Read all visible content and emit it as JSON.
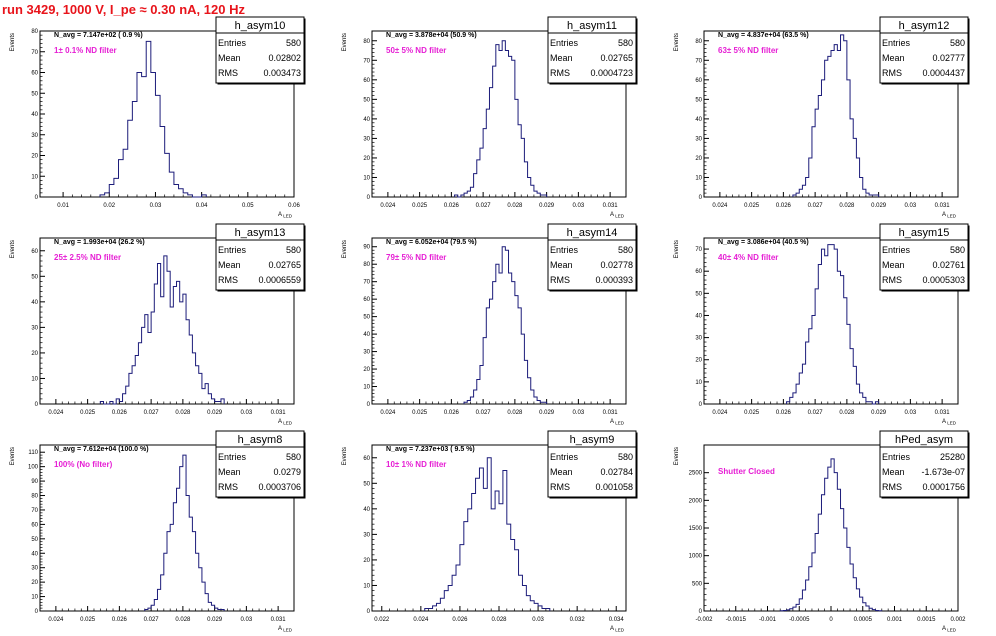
{
  "page_title": "run 3429,  1000 V, I_pe ≈ 0.30 nA, 120 Hz",
  "stats_labels": {
    "entries": "Entries",
    "mean": "Mean",
    "rms": "RMS"
  },
  "colors": {
    "title": "#e8141b",
    "annotation": "#e61ed4",
    "histogram": "#1c1c7a",
    "axis": "#000000"
  },
  "chart_data": [
    {
      "type": "histogram",
      "title": "h_asym10",
      "stats": {
        "entries": "580",
        "mean": "0.02802",
        "rms": "0.003473"
      },
      "navg_label": "N_avg = 7.147e+02 ( 0.9 %)",
      "filter_label": "1± 0.1% ND filter",
      "xlabel": "A_LED",
      "ylabel": "Events",
      "xlim": [
        0.005,
        0.06
      ],
      "ylim": [
        0,
        80
      ],
      "xticks": [
        "0.01",
        "0.02",
        "0.03",
        "0.04",
        "0.05",
        "0.06"
      ],
      "yticks": [
        "0",
        "10",
        "20",
        "30",
        "40",
        "50",
        "60",
        "70",
        "80"
      ],
      "bin_edges": [
        0.018,
        0.019,
        0.02,
        0.021,
        0.022,
        0.023,
        0.024,
        0.025,
        0.026,
        0.027,
        0.028,
        0.029,
        0.03,
        0.031,
        0.032,
        0.033,
        0.034,
        0.035,
        0.036,
        0.037,
        0.038,
        0.039,
        0.04,
        0.041
      ],
      "counts": [
        1,
        2,
        6,
        9,
        18,
        23,
        37,
        46,
        60,
        58,
        75,
        60,
        49,
        34,
        21,
        12,
        6,
        4,
        2,
        1,
        0,
        0,
        1
      ]
    },
    {
      "type": "histogram",
      "title": "h_asym11",
      "stats": {
        "entries": "580",
        "mean": "0.02765",
        "rms": "0.0004723"
      },
      "navg_label": "N_avg = 3.878e+04 (50.9 %)",
      "filter_label": "50± 5% ND filter",
      "xlabel": "A_LED",
      "ylabel": "Events",
      "xlim": [
        0.0235,
        0.0315
      ],
      "ylim": [
        0,
        85
      ],
      "xticks": [
        "0.024",
        "0.025",
        "0.026",
        "0.027",
        "0.028",
        "0.029",
        "0.03",
        "0.031"
      ],
      "yticks": [
        "0",
        "10",
        "20",
        "30",
        "40",
        "50",
        "60",
        "70",
        "80"
      ],
      "bin_edges": [
        0.0261,
        0.0262,
        0.0263,
        0.0264,
        0.0265,
        0.0266,
        0.0267,
        0.0268,
        0.0269,
        0.027,
        0.0271,
        0.0272,
        0.0273,
        0.0274,
        0.0275,
        0.0276,
        0.0277,
        0.0278,
        0.0279,
        0.028,
        0.0281,
        0.0282,
        0.0283,
        0.0284,
        0.0285,
        0.0286,
        0.0287,
        0.0288,
        0.0289,
        0.029
      ],
      "counts": [
        1,
        0,
        1,
        2,
        3,
        5,
        12,
        19,
        25,
        35,
        45,
        56,
        67,
        78,
        75,
        80,
        75,
        72,
        70,
        50,
        37,
        30,
        18,
        10,
        6,
        3,
        2,
        1,
        1
      ]
    },
    {
      "type": "histogram",
      "title": "h_asym12",
      "stats": {
        "entries": "580",
        "mean": "0.02777",
        "rms": "0.0004437"
      },
      "navg_label": "N_avg = 4.837e+04 (63.5 %)",
      "filter_label": "63± 5% ND filter",
      "xlabel": "A_LED",
      "ylabel": "Events",
      "xlim": [
        0.0235,
        0.0315
      ],
      "ylim": [
        0,
        85
      ],
      "xticks": [
        "0.024",
        "0.025",
        "0.026",
        "0.027",
        "0.028",
        "0.029",
        "0.03",
        "0.031"
      ],
      "yticks": [
        "0",
        "10",
        "20",
        "30",
        "40",
        "50",
        "60",
        "70",
        "80"
      ],
      "bin_edges": [
        0.0263,
        0.0264,
        0.0265,
        0.0266,
        0.0267,
        0.0268,
        0.0269,
        0.027,
        0.0271,
        0.0272,
        0.0273,
        0.0274,
        0.0275,
        0.0276,
        0.0277,
        0.0278,
        0.0279,
        0.028,
        0.0281,
        0.0282,
        0.0283,
        0.0284,
        0.0285,
        0.0286,
        0.0287,
        0.0288,
        0.0289,
        0.029
      ],
      "counts": [
        1,
        2,
        4,
        6,
        10,
        20,
        36,
        45,
        52,
        60,
        70,
        72,
        75,
        78,
        75,
        83,
        80,
        60,
        40,
        30,
        20,
        10,
        4,
        2,
        1,
        1,
        1
      ]
    },
    {
      "type": "histogram",
      "title": "h_asym13",
      "stats": {
        "entries": "580",
        "mean": "0.02765",
        "rms": "0.0006559"
      },
      "navg_label": "N_avg = 1.993e+04 (26.2 %)",
      "filter_label": "25± 2.5% ND filter",
      "xlabel": "A_LED",
      "ylabel": "Events",
      "xlim": [
        0.0235,
        0.0315
      ],
      "ylim": [
        0,
        65
      ],
      "xticks": [
        "0.024",
        "0.025",
        "0.026",
        "0.027",
        "0.028",
        "0.029",
        "0.03",
        "0.031"
      ],
      "yticks": [
        "0",
        "10",
        "20",
        "30",
        "40",
        "50",
        "60"
      ],
      "bin_edges": [
        0.0254,
        0.0255,
        0.0256,
        0.0257,
        0.0258,
        0.0259,
        0.026,
        0.0261,
        0.0262,
        0.0263,
        0.0264,
        0.0265,
        0.0266,
        0.0267,
        0.0268,
        0.0269,
        0.027,
        0.0271,
        0.0272,
        0.0273,
        0.0274,
        0.0275,
        0.0276,
        0.0277,
        0.0278,
        0.0279,
        0.028,
        0.0281,
        0.0282,
        0.0283,
        0.0284,
        0.0285,
        0.0286,
        0.0287,
        0.0288,
        0.0289,
        0.029,
        0.0291,
        0.0292,
        0.0293
      ],
      "counts": [
        1,
        0,
        0,
        1,
        0,
        2,
        1,
        4,
        7,
        12,
        15,
        19,
        24,
        30,
        35,
        28,
        36,
        47,
        55,
        42,
        58,
        52,
        38,
        46,
        48,
        40,
        43,
        33,
        27,
        20,
        15,
        12,
        6,
        8,
        4,
        2,
        1,
        1,
        2
      ]
    },
    {
      "type": "histogram",
      "title": "h_asym14",
      "stats": {
        "entries": "580",
        "mean": "0.02778",
        "rms": "0.000393"
      },
      "navg_label": "N_avg = 6.052e+04 (79.5 %)",
      "filter_label": "79± 5% ND filter",
      "xlabel": "A_LED",
      "ylabel": "Events",
      "xlim": [
        0.0235,
        0.0315
      ],
      "ylim": [
        0,
        95
      ],
      "xticks": [
        "0.024",
        "0.025",
        "0.026",
        "0.027",
        "0.028",
        "0.029",
        "0.03",
        "0.031"
      ],
      "yticks": [
        "0",
        "10",
        "20",
        "30",
        "40",
        "50",
        "60",
        "70",
        "80",
        "90"
      ],
      "bin_edges": [
        0.0264,
        0.0265,
        0.0266,
        0.0267,
        0.0268,
        0.0269,
        0.027,
        0.0271,
        0.0272,
        0.0273,
        0.0274,
        0.0275,
        0.0276,
        0.0277,
        0.0278,
        0.0279,
        0.028,
        0.0281,
        0.0282,
        0.0283,
        0.0284,
        0.0285,
        0.0286,
        0.0287,
        0.0288,
        0.0289,
        0.029
      ],
      "counts": [
        1,
        2,
        4,
        8,
        14,
        22,
        38,
        55,
        60,
        70,
        80,
        75,
        90,
        88,
        75,
        70,
        62,
        55,
        40,
        25,
        15,
        8,
        4,
        2,
        1,
        1
      ]
    },
    {
      "type": "histogram",
      "title": "h_asym15",
      "stats": {
        "entries": "580",
        "mean": "0.02761",
        "rms": "0.0005303"
      },
      "navg_label": "N_avg = 3.086e+04 (40.5 %)",
      "filter_label": "40± 4% ND filter",
      "xlabel": "A_LED",
      "ylabel": "Events",
      "xlim": [
        0.0235,
        0.0315
      ],
      "ylim": [
        0,
        75
      ],
      "xticks": [
        "0.024",
        "0.025",
        "0.026",
        "0.027",
        "0.028",
        "0.029",
        "0.03",
        "0.031"
      ],
      "yticks": [
        "0",
        "10",
        "20",
        "30",
        "40",
        "50",
        "60",
        "70"
      ],
      "bin_edges": [
        0.0261,
        0.0262,
        0.0263,
        0.0264,
        0.0265,
        0.0266,
        0.0267,
        0.0268,
        0.0269,
        0.027,
        0.0271,
        0.0272,
        0.0273,
        0.0274,
        0.0275,
        0.0276,
        0.0277,
        0.0278,
        0.0279,
        0.028,
        0.0281,
        0.0282,
        0.0283,
        0.0284,
        0.0285,
        0.0286,
        0.0287,
        0.0288,
        0.0289,
        0.029
      ],
      "counts": [
        1,
        3,
        5,
        9,
        14,
        18,
        28,
        34,
        40,
        52,
        63,
        70,
        67,
        72,
        72,
        70,
        60,
        58,
        48,
        36,
        25,
        17,
        9,
        5,
        3,
        1,
        1,
        0,
        1
      ]
    },
    {
      "type": "histogram",
      "title": "h_asym8",
      "stats": {
        "entries": "580",
        "mean": "0.0279",
        "rms": "0.0003706"
      },
      "navg_label": "N_avg = 7.612e+04 (100.0 %)",
      "filter_label": "100% (No filter)",
      "xlabel": "A_LED",
      "ylabel": "Events",
      "xlim": [
        0.0235,
        0.0315
      ],
      "ylim": [
        0,
        115
      ],
      "xticks": [
        "0.024",
        "0.025",
        "0.026",
        "0.027",
        "0.028",
        "0.029",
        "0.03",
        "0.031"
      ],
      "yticks": [
        "0",
        "10",
        "20",
        "30",
        "40",
        "50",
        "60",
        "70",
        "80",
        "90",
        "100",
        "110"
      ],
      "bin_edges": [
        0.0268,
        0.0269,
        0.027,
        0.0271,
        0.0272,
        0.0273,
        0.0274,
        0.0275,
        0.0276,
        0.0277,
        0.0278,
        0.0279,
        0.028,
        0.0281,
        0.0282,
        0.0283,
        0.0284,
        0.0285,
        0.0286,
        0.0287,
        0.0288,
        0.0289,
        0.029,
        0.0291,
        0.0292,
        0.0293
      ],
      "counts": [
        1,
        2,
        4,
        8,
        15,
        25,
        40,
        55,
        60,
        75,
        85,
        100,
        108,
        80,
        65,
        55,
        40,
        30,
        20,
        12,
        6,
        4,
        2,
        1,
        1
      ]
    },
    {
      "type": "histogram",
      "title": "h_asym9",
      "stats": {
        "entries": "580",
        "mean": "0.02784",
        "rms": "0.001058"
      },
      "navg_label": "N_avg = 7.237e+03 ( 9.5 %)",
      "filter_label": "10± 1% ND filter",
      "xlabel": "A_LED",
      "ylabel": "Events",
      "xlim": [
        0.0215,
        0.0345
      ],
      "ylim": [
        0,
        65
      ],
      "xticks": [
        "0.022",
        "0.024",
        "0.026",
        "0.028",
        "0.03",
        "0.032",
        "0.034"
      ],
      "yticks": [
        "0",
        "10",
        "20",
        "30",
        "40",
        "50",
        "60"
      ],
      "bin_edges": [
        0.0242,
        0.0244,
        0.0246,
        0.0248,
        0.025,
        0.0252,
        0.0254,
        0.0256,
        0.0258,
        0.026,
        0.0262,
        0.0264,
        0.0266,
        0.0268,
        0.027,
        0.0272,
        0.0274,
        0.0276,
        0.0278,
        0.028,
        0.0282,
        0.0284,
        0.0286,
        0.0288,
        0.029,
        0.0292,
        0.0294,
        0.0296,
        0.0298,
        0.03,
        0.0302,
        0.0304,
        0.0306
      ],
      "counts": [
        1,
        1,
        2,
        3,
        5,
        8,
        10,
        14,
        18,
        26,
        35,
        40,
        46,
        52,
        56,
        48,
        60,
        40,
        47,
        42,
        55,
        34,
        28,
        24,
        14,
        10,
        6,
        4,
        3,
        2,
        1,
        1
      ]
    },
    {
      "type": "histogram",
      "title": "hPed_asym",
      "stats": {
        "entries": "25280",
        "mean": "-1.673e-07",
        "rms": "0.0001756"
      },
      "navg_label": "",
      "filter_label": "Shutter Closed",
      "xlabel": "A_LED",
      "ylabel": "Events",
      "xlim": [
        -0.002,
        0.002
      ],
      "ylim": [
        0,
        3000
      ],
      "xticks": [
        "-0.002",
        "-0.0015",
        "-0.001",
        "-0.0005",
        "0",
        "0.0005",
        "0.001",
        "0.0015",
        "0.002"
      ],
      "yticks": [
        "0",
        "500",
        "1000",
        "1500",
        "2000",
        "2500"
      ],
      "bin_edges": [
        -0.0008,
        -0.00075,
        -0.0007,
        -0.00065,
        -0.0006,
        -0.00055,
        -0.0005,
        -0.00045,
        -0.0004,
        -0.00035,
        -0.0003,
        -0.00025,
        -0.0002,
        -0.00015,
        -0.0001,
        -5e-05,
        0,
        5e-05,
        0.0001,
        0.00015,
        0.0002,
        0.00025,
        0.0003,
        0.00035,
        0.0004,
        0.00045,
        0.0005,
        0.00055,
        0.0006,
        0.00065,
        0.0007,
        0.00075,
        0.0008
      ],
      "counts": [
        5,
        10,
        20,
        40,
        70,
        120,
        220,
        380,
        560,
        800,
        1050,
        1400,
        1750,
        2100,
        2400,
        2600,
        2750,
        2500,
        2200,
        1850,
        1500,
        1150,
        850,
        600,
        400,
        250,
        150,
        90,
        50,
        25,
        10,
        5
      ]
    }
  ]
}
